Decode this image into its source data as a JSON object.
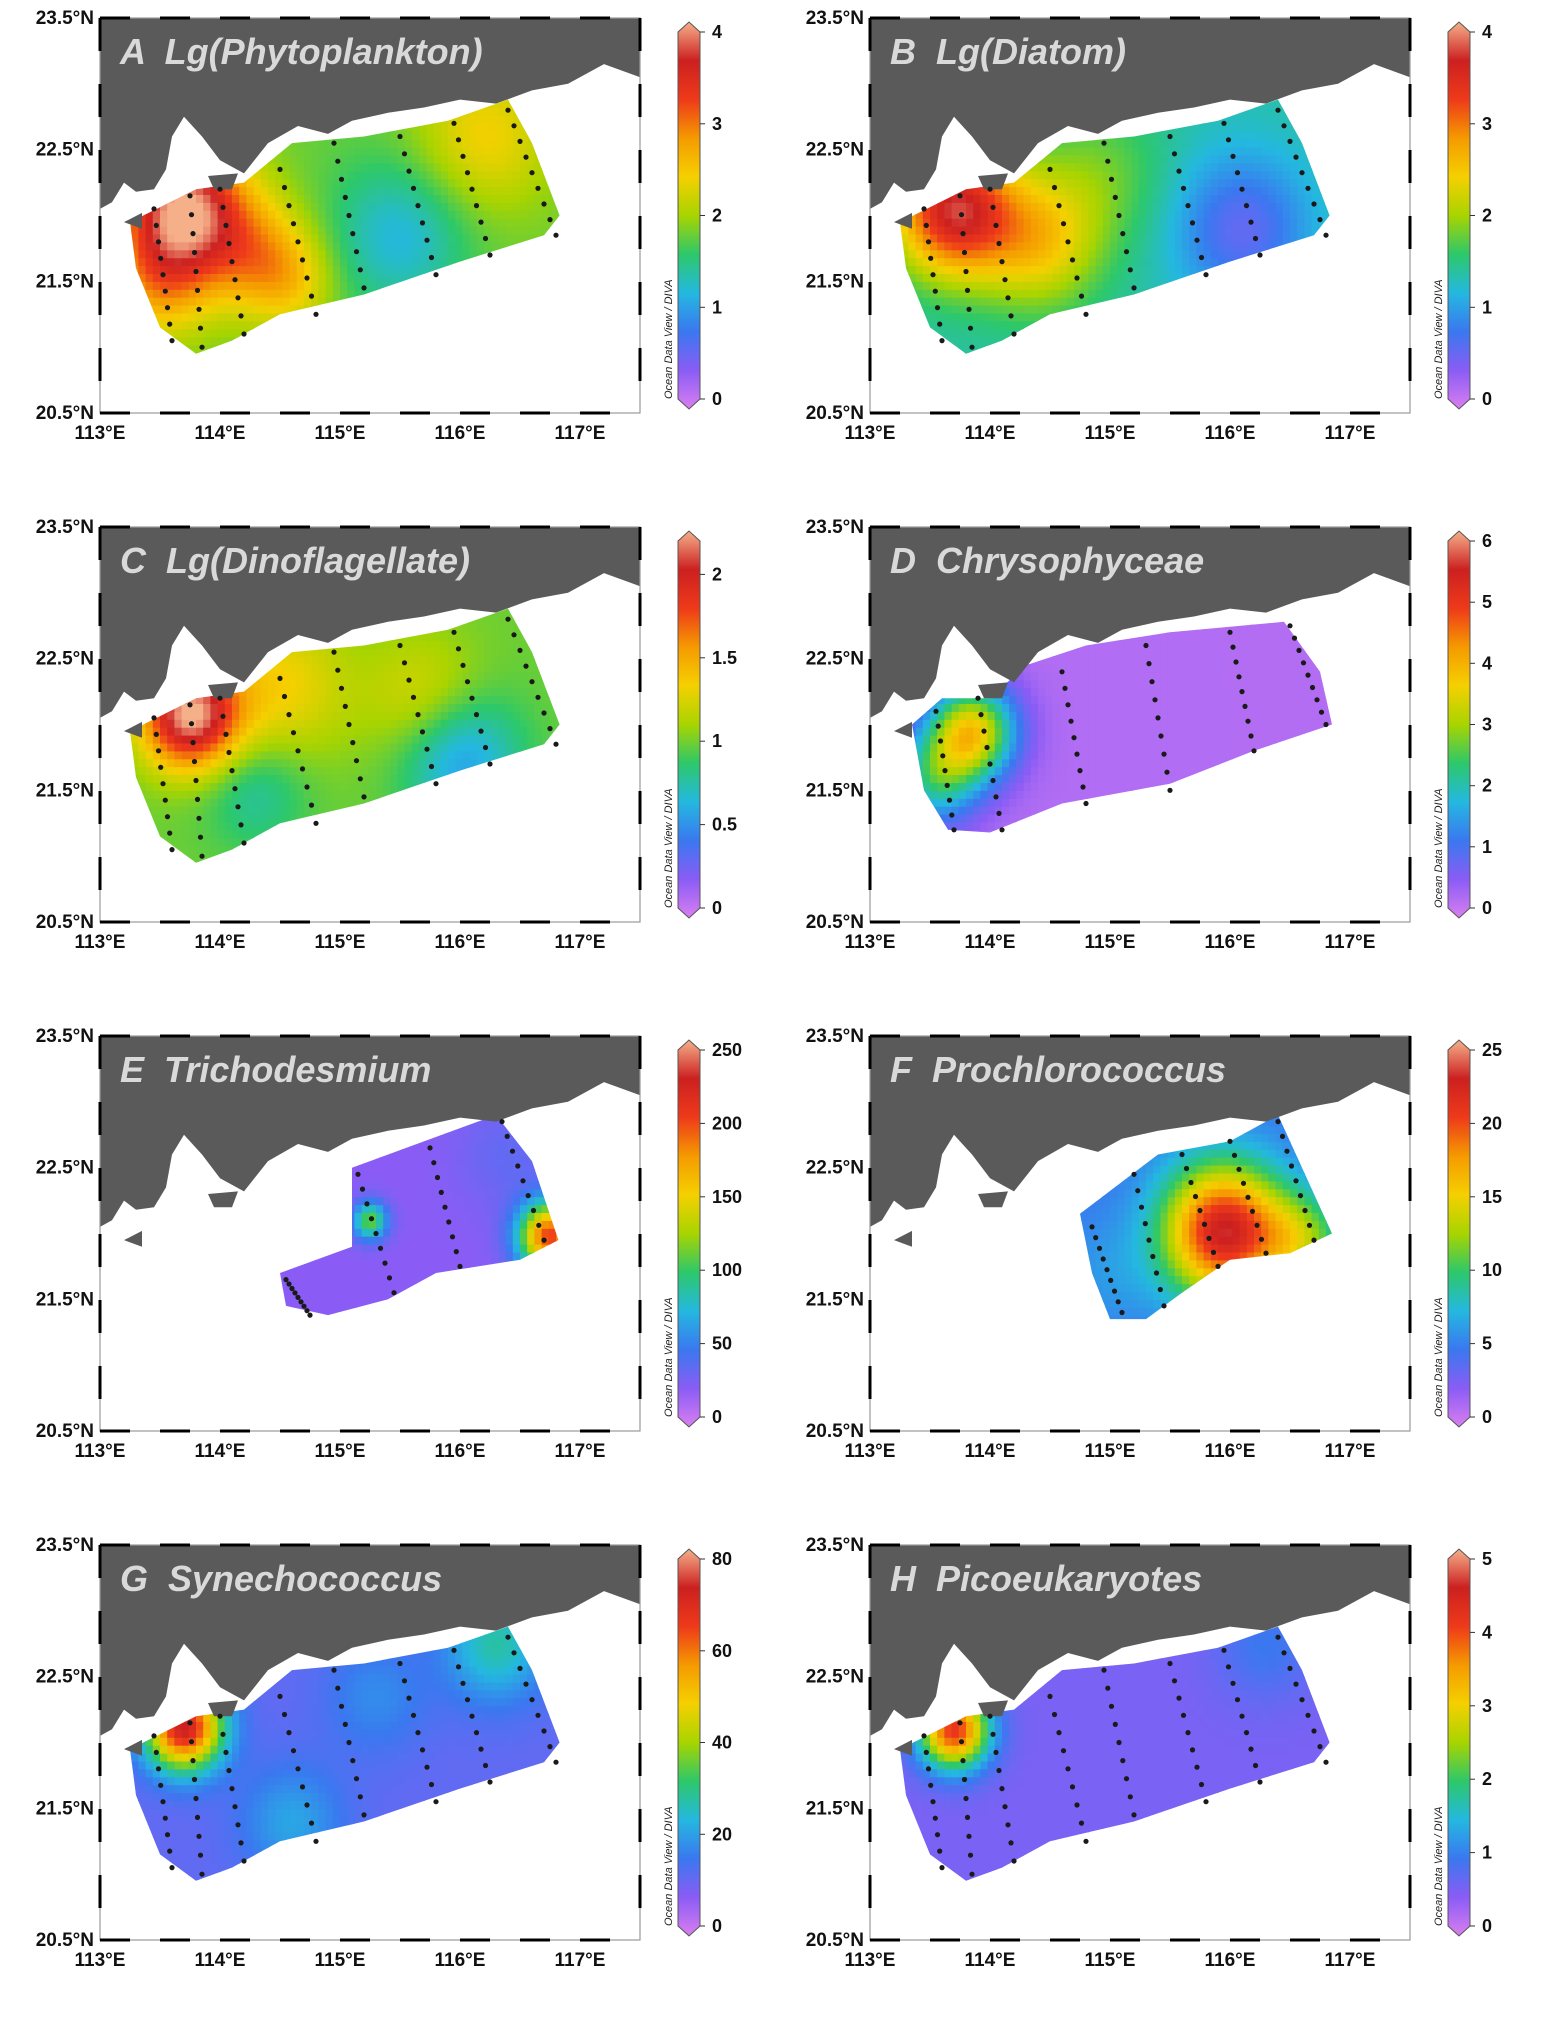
{
  "figure": {
    "lat_ticks": [
      "23.5°N",
      "22.5°N",
      "21.5°N",
      "20.5°N"
    ],
    "lon_ticks": [
      "113°E",
      "114°E",
      "115°E",
      "116°E",
      "117°E"
    ],
    "colorbar_title": "Ocean Data View / DIVA",
    "colors": {
      "land": "#5a5a5a",
      "frame": "#000000",
      "station": "#1a1a1a",
      "title": "#d9d9d9",
      "palette": [
        "#d97ef0",
        "#8a5cf5",
        "#3a78f0",
        "#24b8e0",
        "#2dc86a",
        "#a8d400",
        "#f5d000",
        "#f59a00",
        "#ee3a1a",
        "#cc2020",
        "#f5b08a"
      ]
    }
  },
  "panels": [
    {
      "letter": "A",
      "title": "A  Lg(Phytoplankton)",
      "colorbar_ticks": [
        "0",
        "1",
        "2",
        "3",
        "4"
      ],
      "domain": "full",
      "field": "phyto"
    },
    {
      "letter": "B",
      "title": "B  Lg(Diatom)",
      "colorbar_ticks": [
        "0",
        "1",
        "2",
        "3",
        "4"
      ],
      "domain": "full",
      "field": "diatom"
    },
    {
      "letter": "C",
      "title": "C  Lg(Dinoflagellate)",
      "colorbar_ticks": [
        "0",
        "0.5",
        "1",
        "1.5",
        "2"
      ],
      "domain": "full",
      "field": "dino"
    },
    {
      "letter": "D",
      "title": "D  Chrysophyceae",
      "colorbar_ticks": [
        "0",
        "1",
        "2",
        "3",
        "4",
        "5",
        "6"
      ],
      "domain": "chryso",
      "field": "chryso"
    },
    {
      "letter": "E",
      "title": "E  Trichodesmium",
      "colorbar_ticks": [
        "0",
        "50",
        "100",
        "150",
        "200",
        "250"
      ],
      "domain": "tricho",
      "field": "tricho"
    },
    {
      "letter": "F",
      "title": "F  Prochlorococcus",
      "colorbar_ticks": [
        "0",
        "5",
        "10",
        "15",
        "20",
        "25"
      ],
      "domain": "prochl",
      "field": "prochl"
    },
    {
      "letter": "G",
      "title": "G  Synechococcus",
      "colorbar_ticks": [
        "0",
        "20",
        "40",
        "60",
        "80"
      ],
      "domain": "full",
      "field": "synecho"
    },
    {
      "letter": "H",
      "title": "H  Picoeukaryotes",
      "colorbar_ticks": [
        "0",
        "1",
        "2",
        "3",
        "4",
        "5"
      ],
      "domain": "full",
      "field": "pico"
    }
  ]
}
